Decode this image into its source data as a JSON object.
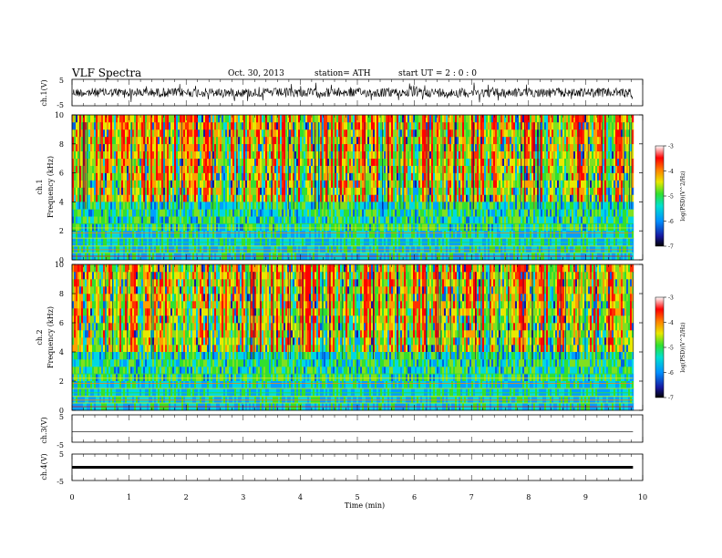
{
  "header": {
    "title": "VLF Spectra",
    "date": "Oct. 30, 2013",
    "station": "station= ATH",
    "start": "start  UT =   2  : 0  : 0"
  },
  "chart_data": [
    {
      "type": "line",
      "panel": "ch1-waveform",
      "ylabel": "ch.1(V)",
      "yticks": [
        "5",
        "-5"
      ],
      "ylim": [
        -5,
        5
      ],
      "x": [
        0,
        9.83
      ],
      "color": "#000000",
      "note_level": "noisy waveform centered near 0 V, amplitude about ±2 V"
    },
    {
      "type": "heatmap",
      "panel": "ch1-spectrogram",
      "ylabel": "ch.1",
      "ylabel2": "Frequency  (kHz)",
      "yticks": [
        "0",
        "2",
        "4",
        "6",
        "8",
        "10"
      ],
      "ylim": [
        0,
        10
      ],
      "xlim": [
        0,
        10
      ],
      "data_end_min": 9.83,
      "colorbar": {
        "label": "log(PSD)(V^2/Hz)",
        "ticks": [
          "-3",
          "-4",
          "-5",
          "-6",
          "-7"
        ],
        "range": [
          -7,
          -3
        ],
        "colors": [
          "#000000",
          "#2020c0",
          "#00a0ff",
          "#00e0e0",
          "#40e040",
          "#e0e000",
          "#ff8000",
          "#ff0000",
          "#ffffff"
        ]
      }
    },
    {
      "type": "heatmap",
      "panel": "ch2-spectrogram",
      "ylabel": "ch.2",
      "ylabel2": "Frequency  (kHz)",
      "yticks": [
        "0",
        "2",
        "4",
        "6",
        "8",
        "10"
      ],
      "ylim": [
        0,
        10
      ],
      "xlim": [
        0,
        10
      ],
      "data_end_min": 9.83,
      "colorbar": {
        "label": "log(PSD)(V^2/Hz)",
        "ticks": [
          "-3",
          "-4",
          "-5",
          "-6",
          "-7"
        ],
        "range": [
          -7,
          -3
        ]
      }
    },
    {
      "type": "line",
      "panel": "ch3-waveform",
      "ylabel": "ch.3(V)",
      "yticks": [
        "5",
        "-5"
      ],
      "ylim": [
        -5,
        5
      ],
      "level_v": -1.2
    },
    {
      "type": "line",
      "panel": "ch4-waveform",
      "ylabel": "ch.4(V)",
      "yticks": [
        "5",
        "-5"
      ],
      "ylim": [
        -5,
        5
      ],
      "level_v": 0
    }
  ],
  "xaxis": {
    "label": "Time  (min)",
    "ticks": [
      "0",
      "1",
      "2",
      "3",
      "4",
      "5",
      "6",
      "7",
      "8",
      "9",
      "10"
    ],
    "xlim": [
      0,
      10
    ]
  }
}
